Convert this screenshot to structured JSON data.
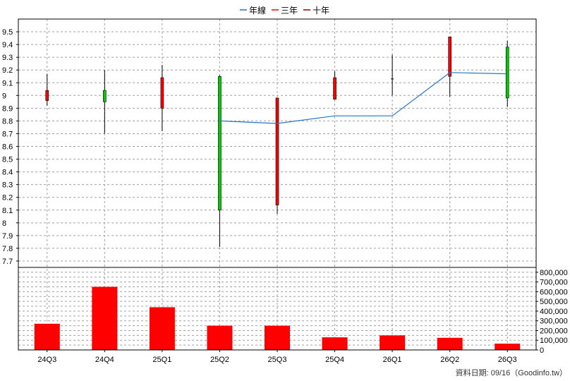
{
  "chart_data": {
    "type": "candlestick-with-volume",
    "legend": {
      "placement": "top-center",
      "items": [
        {
          "label": "年線",
          "color": "#1f77c8"
        },
        {
          "label": "三年",
          "color": "#ff0000"
        },
        {
          "label": "十年",
          "color": "#9b0000"
        }
      ]
    },
    "categories": [
      "24Q3",
      "24Q4",
      "25Q1",
      "25Q2",
      "25Q3",
      "25Q4",
      "26Q1",
      "26Q2",
      "26Q3"
    ],
    "price": {
      "ylim": [
        7.65,
        9.6
      ],
      "ticks": [
        "9.5",
        "9.4",
        "9.3",
        "9.2",
        "9.1",
        "9",
        "8.9",
        "8.8",
        "8.7",
        "8.6",
        "8.5",
        "8.4",
        "8.3",
        "8.2",
        "8.1",
        "8",
        "7.9",
        "7.8",
        "7.7"
      ],
      "candles": [
        {
          "open": 8.96,
          "close": 9.04,
          "high": 9.17,
          "low": 8.92
        },
        {
          "open": 9.04,
          "close": 8.95,
          "high": 9.2,
          "low": 8.7
        },
        {
          "open": 8.9,
          "close": 9.14,
          "high": 9.24,
          "low": 8.72
        },
        {
          "open": 9.15,
          "close": 8.1,
          "high": 9.16,
          "low": 7.81
        },
        {
          "open": 8.14,
          "close": 8.98,
          "high": 8.98,
          "low": 8.07
        },
        {
          "open": 8.97,
          "close": 9.14,
          "high": 9.19,
          "low": 8.97
        },
        {
          "open": 9.13,
          "close": 9.13,
          "high": 9.32,
          "low": 9.0
        },
        {
          "open": 9.15,
          "close": 9.46,
          "high": 9.46,
          "low": 8.99
        },
        {
          "open": 9.38,
          "close": 8.98,
          "high": 9.43,
          "low": 8.91
        }
      ],
      "annual_line": [
        null,
        null,
        null,
        8.8,
        8.78,
        8.84,
        8.84,
        9.18,
        9.17
      ]
    },
    "volume": {
      "ylim": [
        0,
        850000
      ],
      "ticks": [
        "800,000",
        "700,000",
        "600,000",
        "500,000",
        "400,000",
        "300,000",
        "200,000",
        "100,000",
        "0"
      ],
      "values": [
        270000,
        650000,
        440000,
        250000,
        250000,
        130000,
        150000,
        125000,
        65000
      ]
    },
    "colors": {
      "up": "#ff0000",
      "down": "#00cc00",
      "volume_bar": "#ff0000",
      "grid": "#a0a0a0"
    },
    "footer": "資料日期: 09/16（Goodinfo.tw）"
  }
}
